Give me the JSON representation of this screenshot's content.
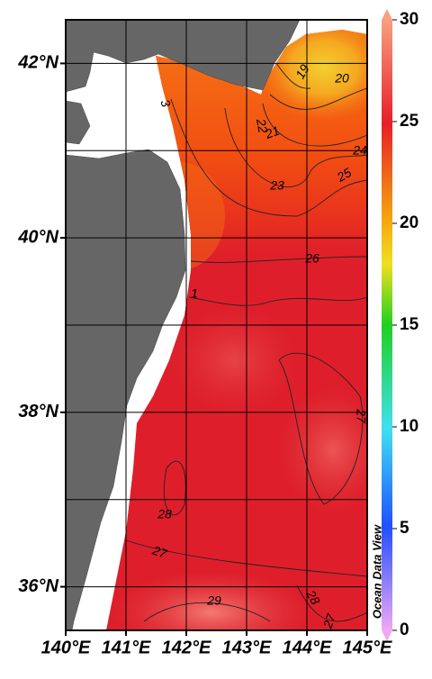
{
  "map": {
    "lon_range": [
      140,
      145
    ],
    "lat_range": [
      35.5,
      42.5
    ],
    "lon_ticks": [
      {
        "value": 140,
        "label": "140°E"
      },
      {
        "value": 141,
        "label": "141°E"
      },
      {
        "value": 142,
        "label": "142°E"
      },
      {
        "value": 143,
        "label": "143°E"
      },
      {
        "value": 144,
        "label": "144°E"
      },
      {
        "value": 145,
        "label": "145°E"
      }
    ],
    "lat_ticks": [
      {
        "value": 36,
        "label": "36°N"
      },
      {
        "value": 38,
        "label": "38°N"
      },
      {
        "value": 40,
        "label": "40°N"
      },
      {
        "value": 42,
        "label": "42°N"
      }
    ],
    "colorbar": {
      "range": [
        0,
        30
      ],
      "ticks": [
        0,
        5,
        10,
        15,
        20,
        25,
        30
      ]
    },
    "contour_labels": [
      "3",
      "19",
      "20",
      "22",
      "21",
      "24",
      "25",
      "23",
      "26",
      "1",
      "27",
      "28",
      "27",
      "29",
      "28",
      "27"
    ],
    "watermark": "Ocean Data View"
  }
}
